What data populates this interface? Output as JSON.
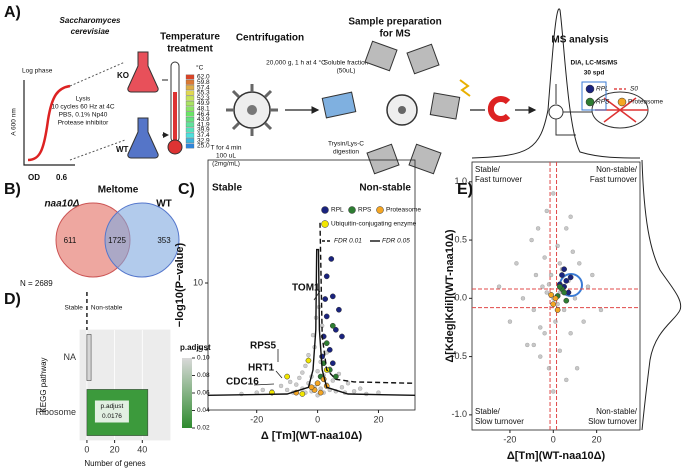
{
  "panel_a": {
    "label": "A)",
    "organism": [
      "Saccharomyces",
      "cerevisiae"
    ],
    "log_phase": "Log phase",
    "y_axis": "A 600 nm",
    "x_axis": "OD",
    "od_value": "0.6",
    "lysis": [
      "Lysis",
      "10 cycles 60 Hz at 4C",
      "PBS, 0.1% Np40",
      "Protease inhibitor"
    ],
    "ko": "KO",
    "wt": "WT",
    "temperature_title": [
      "Temperature",
      "treatment"
    ],
    "unit": "°C",
    "temperatures": [
      "62.0",
      "59.8",
      "57.4",
      "55.3",
      "52.3",
      "49.9",
      "48.1",
      "46.4",
      "43.9",
      "41.9",
      "39.9",
      "37.4",
      "32.9",
      "25.0"
    ],
    "heating": [
      "T for 4 min",
      "100 uL",
      "(2mg/mL)"
    ],
    "centrifugation": "Centrifugation",
    "centrifugation_detail": "20,000 g, 1 h at 4 °C",
    "sample_prep": [
      "Sample preparation",
      "for MS"
    ],
    "soluble": [
      "Soluble fraction",
      "(50uL)"
    ],
    "digestion": [
      "Trysin/Lys-C",
      "digestion"
    ],
    "ms_title": "MS analysis",
    "ms_detail": [
      "DIA, LC-MS/MS",
      "30 spd"
    ]
  },
  "panel_b": {
    "label": "B)",
    "title": "Meltome",
    "left": "naa10Δ",
    "right": "WT",
    "counts": [
      611,
      1725,
      353
    ],
    "total": "N = 2689"
  },
  "chart_data": [
    {
      "type": "scatter",
      "label": "C)",
      "xlabel": "Δ [Tm](WT-naa10Δ)",
      "ylabel": "−log10(P−value)",
      "regions": [
        "Stable",
        "Non-stable"
      ],
      "xlim": [
        -36,
        32
      ],
      "ylim": [
        0.5,
        19.2
      ],
      "xticks": [
        -20,
        0,
        20
      ],
      "yticks": [
        5,
        10
      ],
      "series": [
        {
          "color": "#b8b8b8",
          "x": [
            -25,
            -20,
            -18,
            -15,
            -12,
            -10,
            -9,
            -8,
            -7,
            -6,
            -5,
            -5,
            -4,
            -4,
            -3,
            -3,
            -2,
            -2,
            -1,
            -1,
            0,
            0,
            1,
            1,
            2,
            2,
            3,
            3,
            4,
            4,
            5,
            6,
            7,
            8,
            9,
            10,
            12,
            14,
            16,
            20,
            -1.5,
            1.5,
            0.5,
            -0.5
          ],
          "values": [
            1.7,
            1.8,
            2.0,
            1.9,
            2.3,
            2.0,
            2.6,
            1.8,
            2.4,
            2.9,
            2.1,
            3.3,
            1.8,
            3.8,
            2.5,
            4.6,
            1.9,
            3.0,
            2.2,
            5.2,
            1.6,
            3.4,
            2.1,
            4.1,
            1.8,
            3.1,
            2.4,
            4.8,
            2.0,
            3.6,
            2.7,
            1.9,
            3.2,
            2.2,
            1.8,
            2.5,
            1.9,
            2.1,
            1.7,
            1.8,
            6.1,
            6.8,
            8.2,
            7.4
          ]
        },
        {
          "name": "RPL",
          "color": "#1a237e",
          "x": [
            2,
            3,
            4,
            5,
            6,
            1.5,
            8,
            3,
            5,
            7,
            4.5,
            2.5
          ],
          "values": [
            6.0,
            7.5,
            5.0,
            9.0,
            6.5,
            4.5,
            6.0,
            10.5,
            4.0,
            8.0,
            11.8,
            8.8
          ]
        },
        {
          "name": "RPS",
          "color": "#2e7d32",
          "x": [
            2,
            4,
            6,
            1,
            3,
            5
          ],
          "values": [
            4.0,
            3.5,
            3.0,
            3.0,
            5.5,
            6.8
          ]
        },
        {
          "name": "Proteasome",
          "color": "#f5a623",
          "x": [
            0,
            -1,
            1,
            -2,
            2,
            -7,
            3
          ],
          "values": [
            2.5,
            2.0,
            1.8,
            2.2,
            2.8,
            1.8,
            2.3
          ]
        },
        {
          "name": "Ubiquitin-conjugating enzyme",
          "color": "#f2e600",
          "x": [
            -10,
            -15,
            -5,
            3,
            -3
          ],
          "values": [
            3.0,
            1.8,
            1.7,
            3.5,
            4.2
          ]
        }
      ],
      "lines": [
        {
          "name": "FDR 0.01",
          "dash": true,
          "x": [
            0.8,
            1.5,
            3,
            6,
            12,
            32
          ],
          "values": [
            14.5,
            6.0,
            3.5,
            2.8,
            2.6,
            2.5
          ]
        },
        {
          "name": "FDR 0.05",
          "dash": false,
          "x": [
            -36,
            -10,
            -3,
            -1.5,
            -0.6,
            -0.3,
            0.3,
            0.6,
            1.5,
            3,
            10,
            32
          ],
          "values": [
            1.6,
            1.7,
            2.2,
            3.5,
            6.5,
            12.5,
            12.5,
            6.5,
            3.5,
            2.2,
            1.7,
            1.6
          ]
        }
      ],
      "annotations": [
        "TOM1",
        "RPS5",
        "HRT1",
        "CDC16"
      ]
    },
    {
      "type": "bar",
      "label": "D)",
      "regions": [
        "Stable",
        "Non-stable"
      ],
      "xlabel": "Number of genes",
      "ylabel": "KEGG pathway",
      "categories": [
        "NA",
        "Ribosome"
      ],
      "values": [
        3,
        44
      ],
      "colors": [
        "#d6d6d6",
        "#3c9a3c"
      ],
      "xlim": [
        -5,
        60
      ],
      "xticks": [
        0,
        20,
        40
      ],
      "annotation": [
        "p.adjust",
        "0.0176"
      ],
      "colorbar": {
        "title": "p.adjust",
        "colors": [
          "#d9d9d9",
          "#2e8b2e"
        ],
        "ticks": [
          {
            "value": 0.1,
            "label": "0.10"
          },
          0.08,
          0.06,
          0.04,
          0.02
        ]
      }
    },
    {
      "type": "scatter",
      "label": "E)",
      "xlabel": "Δ[Tm](WT-naa10Δ)",
      "ylabel": "Δ[Kdeg|Kdil](WT-naa10Δ)",
      "quadrants": [
        [
          "Stable/",
          "Fast turnover"
        ],
        [
          "Non-stable/",
          "Fast turnover"
        ],
        [
          "Stable/",
          "Slow turnover"
        ],
        [
          "Non-stable/",
          "Slow turnover"
        ]
      ],
      "xlim": [
        -37.5,
        40
      ],
      "ylim": [
        -1.13,
        1.17
      ],
      "xticks": [
        -20,
        0,
        20
      ],
      "yticks": [
        {
          "value": -1,
          "label": "-1.0"
        },
        -0.5,
        {
          "value": 0,
          "label": "0.0"
        },
        0.5,
        {
          "value": 1,
          "label": "1.0"
        }
      ],
      "series": [
        {
          "color": "#b0b0b0",
          "x": [
            -25,
            -20,
            -17,
            -14,
            -12,
            -10,
            -9,
            -8,
            -7,
            -6,
            -5,
            -4,
            -4,
            -3,
            -2,
            -1,
            0,
            0,
            1,
            2,
            3,
            3,
            4,
            5,
            6,
            7,
            8,
            9,
            10,
            11,
            12,
            14,
            16,
            18,
            22,
            -6,
            6,
            -3,
            3,
            0,
            2,
            -2,
            8,
            -9
          ],
          "values": [
            0.1,
            -0.2,
            0.3,
            0.0,
            -0.4,
            0.5,
            -0.1,
            0.2,
            0.6,
            -0.5,
            0.1,
            0.35,
            -0.3,
            0.75,
            -0.6,
            0.2,
            0.9,
            -0.8,
            -0.2,
            0.45,
            0.05,
            -0.45,
            0.25,
            -0.1,
            0.6,
            0.15,
            -0.3,
            0.4,
            0.0,
            -0.6,
            0.3,
            -0.2,
            0.1,
            0.2,
            -0.1,
            -0.25,
            -0.7,
            0.05,
            0.3,
            0.0,
            -0.05,
            0.12,
            0.7,
            -0.4
          ]
        },
        {
          "name": "RPL",
          "color": "#1a237e",
          "x": [
            3,
            4,
            5,
            6,
            7,
            5,
            8
          ],
          "values": [
            0.12,
            0.2,
            0.1,
            0.15,
            0.05,
            0.25,
            0.18
          ]
        },
        {
          "name": "RPS",
          "color": "#2e7d32",
          "x": [
            2,
            4,
            6,
            3,
            5
          ],
          "values": [
            0.02,
            0.08,
            -0.02,
            0.1,
            0.05
          ]
        },
        {
          "name": "Proteasome",
          "color": "#f5a623",
          "x": [
            0,
            1,
            -1,
            2
          ],
          "values": [
            -0.05,
            0.0,
            0.03,
            -0.1
          ]
        }
      ],
      "s0_lines": {
        "name": "S0",
        "color": "#e04848",
        "x": [
          -1.5,
          1.5
        ],
        "y": [
          -0.08,
          0.08
        ]
      }
    }
  ]
}
